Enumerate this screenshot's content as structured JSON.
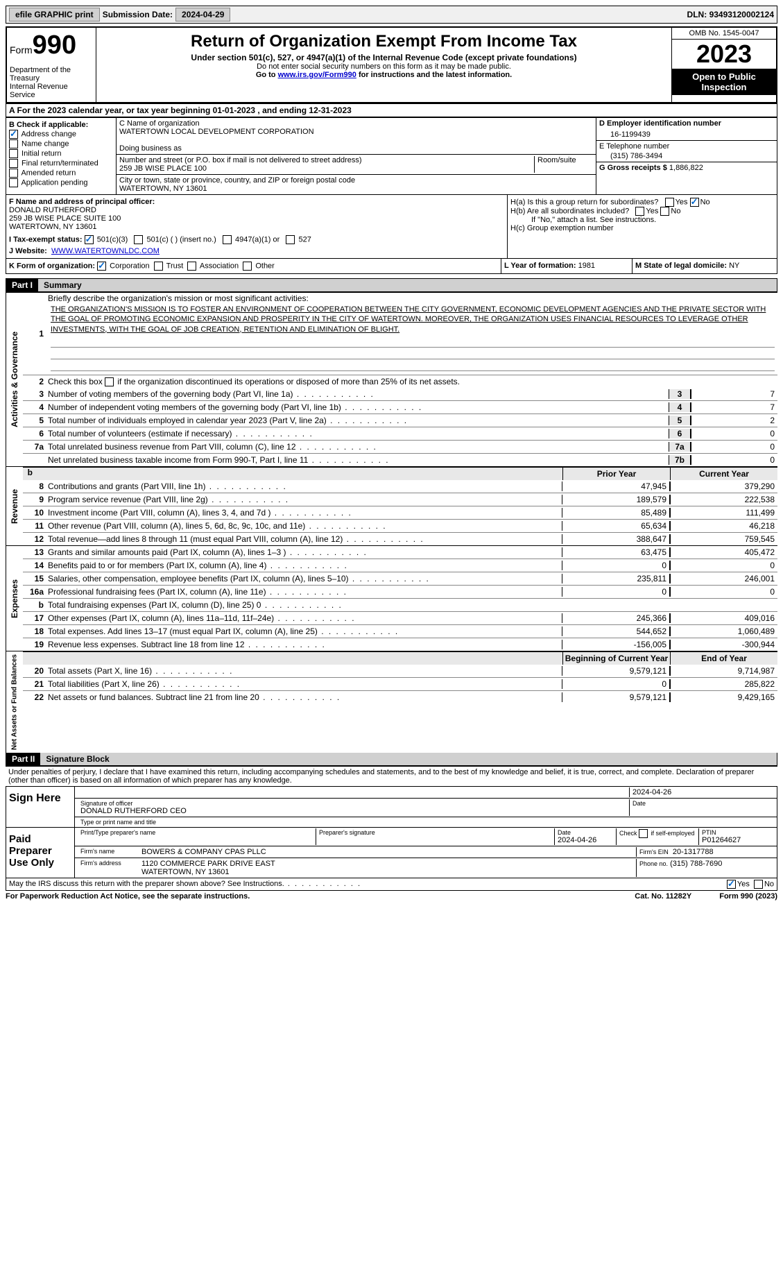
{
  "top_bar": {
    "efile": "efile GRAPHIC print",
    "submission_label": "Submission Date:",
    "submission_date": "2024-04-29",
    "dln_label": "DLN:",
    "dln": "93493120002124"
  },
  "header": {
    "form_word": "Form",
    "form_number": "990",
    "title": "Return of Organization Exempt From Income Tax",
    "subtitle": "Under section 501(c), 527, or 4947(a)(1) of the Internal Revenue Code (except private foundations)",
    "note1": "Do not enter social security numbers on this form as it may be made public.",
    "note2_prefix": "Go to ",
    "note2_link": "www.irs.gov/Form990",
    "note2_suffix": " for instructions and the latest information.",
    "dept": "Department of the Treasury\nInternal Revenue Service",
    "omb": "OMB No. 1545-0047",
    "year": "2023",
    "open": "Open to Public Inspection"
  },
  "section_a": {
    "text_prefix": "A For the 2023 calendar year, or tax year beginning ",
    "begin": "01-01-2023",
    "mid": " , and ending ",
    "end": "12-31-2023"
  },
  "section_b": {
    "label": "B Check if applicable:",
    "items": [
      {
        "label": "Address change",
        "checked": true
      },
      {
        "label": "Name change",
        "checked": false
      },
      {
        "label": "Initial return",
        "checked": false
      },
      {
        "label": "Final return/terminated",
        "checked": false
      },
      {
        "label": "Amended return",
        "checked": false
      },
      {
        "label": "Application pending",
        "checked": false
      }
    ]
  },
  "section_c": {
    "name_label": "C Name of organization",
    "name": "WATERTOWN LOCAL DEVELOPMENT CORPORATION",
    "dba_label": "Doing business as",
    "street_label": "Number and street (or P.O. box if mail is not delivered to street address)",
    "street": "259 JB WISE PLACE 100",
    "room_label": "Room/suite",
    "city_label": "City or town, state or province, country, and ZIP or foreign postal code",
    "city": "WATERTOWN, NY  13601"
  },
  "section_d": {
    "ein_label": "D Employer identification number",
    "ein": "16-1199439",
    "phone_label": "E Telephone number",
    "phone": "(315) 786-3494",
    "gross_label": "G Gross receipts $",
    "gross": "1,886,822"
  },
  "section_f": {
    "label": "F Name and address of principal officer:",
    "name": "DONALD RUTHERFORD",
    "addr1": "259 JB WISE PLACE SUITE 100",
    "addr2": "WATERTOWN, NY  13601"
  },
  "section_h": {
    "ha": "H(a) Is this a group return for subordinates?",
    "hb": "H(b) Are all subordinates included?",
    "hb_note": "If \"No,\" attach a list. See instructions.",
    "hc": "H(c) Group exemption number"
  },
  "section_i": {
    "label": "I Tax-exempt status:",
    "opts": [
      "501(c)(3)",
      "501(c) (  ) (insert no.)",
      "4947(a)(1) or",
      "527"
    ]
  },
  "section_j": {
    "label": "J Website:",
    "value": "WWW.WATERTOWNLDC.COM"
  },
  "section_k": {
    "label": "K Form of organization:",
    "opts": [
      "Corporation",
      "Trust",
      "Association",
      "Other"
    ],
    "l_label": "L Year of formation:",
    "l_val": "1981",
    "m_label": "M State of legal domicile:",
    "m_val": "NY"
  },
  "part1": {
    "header": "Part I",
    "title": "Summary",
    "q1_label": "Briefly describe the organization's mission or most significant activities:",
    "q1_text": "THE ORGANIZATION'S MISSION IS TO FOSTER AN ENVIRONMENT OF COOPERATION BETWEEN THE CITY GOVERNMENT, ECONOMIC DEVELOPMENT AGENCIES AND THE PRIVATE SECTOR WITH THE GOAL OF PROMOTING ECONOMIC EXPANSION AND PROSPERITY IN THE CITY OF WATERTOWN. MOREOVER, THE ORGANIZATION USES FINANCIAL RESOURCES TO LEVERAGE OTHER INVESTMENTS, WITH THE GOAL OF JOB CREATION, RETENTION AND ELIMINATION OF BLIGHT.",
    "q2": "Check this box       if the organization discontinued its operations or disposed of more than 25% of its net assets.",
    "governance_label": "Activities & Governance",
    "revenue_label": "Revenue",
    "expenses_label": "Expenses",
    "netassets_label": "Net Assets or Fund Balances",
    "prior_year": "Prior Year",
    "current_year": "Current Year",
    "begin_year": "Beginning of Current Year",
    "end_year": "End of Year",
    "gov_lines": [
      {
        "n": "3",
        "desc": "Number of voting members of the governing body (Part VI, line 1a)",
        "box": "3",
        "val": "7"
      },
      {
        "n": "4",
        "desc": "Number of independent voting members of the governing body (Part VI, line 1b)",
        "box": "4",
        "val": "7"
      },
      {
        "n": "5",
        "desc": "Total number of individuals employed in calendar year 2023 (Part V, line 2a)",
        "box": "5",
        "val": "2"
      },
      {
        "n": "6",
        "desc": "Total number of volunteers (estimate if necessary)",
        "box": "6",
        "val": "0"
      },
      {
        "n": "7a",
        "desc": "Total unrelated business revenue from Part VIII, column (C), line 12",
        "box": "7a",
        "val": "0"
      },
      {
        "n": "",
        "desc": "Net unrelated business taxable income from Form 990-T, Part I, line 11",
        "box": "7b",
        "val": "0"
      }
    ],
    "rev_lines": [
      {
        "n": "8",
        "desc": "Contributions and grants (Part VIII, line 1h)",
        "prior": "47,945",
        "curr": "379,290"
      },
      {
        "n": "9",
        "desc": "Program service revenue (Part VIII, line 2g)",
        "prior": "189,579",
        "curr": "222,538"
      },
      {
        "n": "10",
        "desc": "Investment income (Part VIII, column (A), lines 3, 4, and 7d )",
        "prior": "85,489",
        "curr": "111,499"
      },
      {
        "n": "11",
        "desc": "Other revenue (Part VIII, column (A), lines 5, 6d, 8c, 9c, 10c, and 11e)",
        "prior": "65,634",
        "curr": "46,218"
      },
      {
        "n": "12",
        "desc": "Total revenue—add lines 8 through 11 (must equal Part VIII, column (A), line 12)",
        "prior": "388,647",
        "curr": "759,545"
      }
    ],
    "exp_lines": [
      {
        "n": "13",
        "desc": "Grants and similar amounts paid (Part IX, column (A), lines 1–3 )",
        "prior": "63,475",
        "curr": "405,472"
      },
      {
        "n": "14",
        "desc": "Benefits paid to or for members (Part IX, column (A), line 4)",
        "prior": "0",
        "curr": "0"
      },
      {
        "n": "15",
        "desc": "Salaries, other compensation, employee benefits (Part IX, column (A), lines 5–10)",
        "prior": "235,811",
        "curr": "246,001"
      },
      {
        "n": "16a",
        "desc": "Professional fundraising fees (Part IX, column (A), line 11e)",
        "prior": "0",
        "curr": "0"
      },
      {
        "n": "b",
        "desc": "Total fundraising expenses (Part IX, column (D), line 25) 0",
        "prior": "",
        "curr": "",
        "gray": true
      },
      {
        "n": "17",
        "desc": "Other expenses (Part IX, column (A), lines 11a–11d, 11f–24e)",
        "prior": "245,366",
        "curr": "409,016"
      },
      {
        "n": "18",
        "desc": "Total expenses. Add lines 13–17 (must equal Part IX, column (A), line 25)",
        "prior": "544,652",
        "curr": "1,060,489"
      },
      {
        "n": "19",
        "desc": "Revenue less expenses. Subtract line 18 from line 12",
        "prior": "-156,005",
        "curr": "-300,944"
      }
    ],
    "net_lines": [
      {
        "n": "20",
        "desc": "Total assets (Part X, line 16)",
        "prior": "9,579,121",
        "curr": "9,714,987"
      },
      {
        "n": "21",
        "desc": "Total liabilities (Part X, line 26)",
        "prior": "0",
        "curr": "285,822"
      },
      {
        "n": "22",
        "desc": "Net assets or fund balances. Subtract line 21 from line 20",
        "prior": "9,579,121",
        "curr": "9,429,165"
      }
    ]
  },
  "part2": {
    "header": "Part II",
    "title": "Signature Block",
    "declare": "Under penalties of perjury, I declare that I have examined this return, including accompanying schedules and statements, and to the best of my knowledge and belief, it is true, correct, and complete. Declaration of preparer (other than officer) is based on all information of which preparer has any knowledge.",
    "sign_here": "Sign Here",
    "sig_date": "2024-04-26",
    "sig_label": "Signature of officer",
    "officer": "DONALD RUTHERFORD  CEO",
    "type_label": "Type or print name and title",
    "paid_prep": "Paid Preparer Use Only",
    "prep_name_label": "Print/Type preparer's name",
    "prep_sig_label": "Preparer's signature",
    "date_label": "Date",
    "prep_date": "2024-04-26",
    "self_emp": "Check        if self-employed",
    "ptin_label": "PTIN",
    "ptin": "P01264627",
    "firm_name_label": "Firm's name",
    "firm_name": "BOWERS & COMPANY CPAS PLLC",
    "firm_ein_label": "Firm's EIN",
    "firm_ein": "20-1317788",
    "firm_addr_label": "Firm's address",
    "firm_addr1": "1120 COMMERCE PARK DRIVE EAST",
    "firm_addr2": "WATERTOWN, NY  13601",
    "phone_label": "Phone no.",
    "phone": "(315) 788-7690",
    "discuss": "May the IRS discuss this return with the preparer shown above? See Instructions."
  },
  "footer": {
    "left": "For Paperwork Reduction Act Notice, see the separate instructions.",
    "mid": "Cat. No. 11282Y",
    "right": "Form 990 (2023)"
  }
}
